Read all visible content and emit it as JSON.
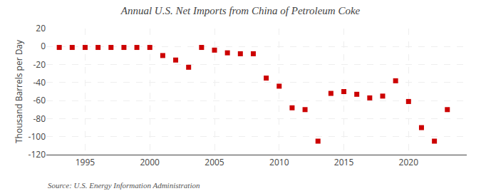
{
  "chart_data": {
    "type": "scatter",
    "title": "Annual U.S. Net Imports from China of Petroleum Coke",
    "ylabel": "Thousand Barrels per Day",
    "source": "Source: U.S. Energy Information Administration",
    "x": [
      1993,
      1994,
      1995,
      1996,
      1997,
      1998,
      1999,
      2000,
      2001,
      2002,
      2003,
      2004,
      2005,
      2006,
      2007,
      2008,
      2009,
      2010,
      2011,
      2012,
      2013,
      2014,
      2015,
      2016,
      2017,
      2018,
      2019,
      2020,
      2021,
      2022,
      2023
    ],
    "values": [
      -1,
      -1,
      -1,
      -1,
      -1,
      -1,
      -1,
      -1,
      -10,
      -15,
      -23,
      -1,
      -4,
      -7,
      -8,
      -8,
      -35,
      -44,
      -68,
      -70,
      -105,
      -52,
      -50,
      -53,
      -57,
      -55,
      -38,
      -61,
      -90,
      -105,
      -70
    ],
    "color": "#cc0000",
    "marker": "square",
    "xlim": [
      1992,
      2024.5
    ],
    "xticks": [
      1995,
      2000,
      2005,
      2010,
      2015,
      2020
    ],
    "ylim": [
      -120,
      20
    ],
    "yticks": [
      20,
      0,
      -20,
      -40,
      -60,
      -80,
      -100,
      -120
    ],
    "grid": true
  }
}
